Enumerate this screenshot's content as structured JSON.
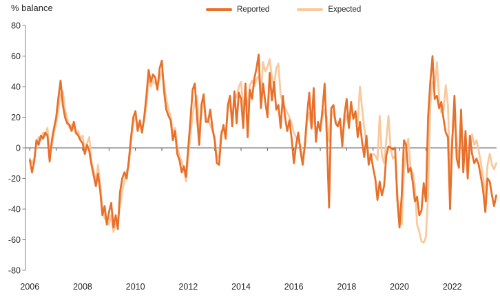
{
  "header": {
    "y_axis_title": "% balance"
  },
  "legend": {
    "position": "top-center",
    "items": [
      {
        "label": "Reported",
        "color": "#E8702A"
      },
      {
        "label": "Expected",
        "color": "#F9C99D"
      }
    ]
  },
  "axis_colors": {
    "y_axis": "#808080",
    "zero_line": "#595959",
    "tick_text": "#262626"
  },
  "chart_data": {
    "type": "line",
    "title": "",
    "ylabel": "% balance",
    "xlabel": "",
    "frequency": "monthly",
    "x_start": "2006-01",
    "x_end": "2023-09",
    "ylim": [
      -80,
      80
    ],
    "grid": false,
    "legend_position": "top",
    "yticks": [
      80,
      60,
      40,
      20,
      0,
      -20,
      -40,
      -60,
      -80
    ],
    "ytick_labels": [
      "80",
      "60",
      "40",
      "20",
      "0",
      "-20",
      "-40",
      "-60",
      "-80"
    ],
    "xtick_labels": [
      "2006",
      "2008",
      "2010",
      "2012",
      "2014",
      "2016",
      "2018",
      "2020",
      "2022"
    ],
    "series": [
      {
        "name": "Reported",
        "color": "#E8702A",
        "values": [
          -8,
          -16,
          -9,
          5,
          2,
          8,
          6,
          10,
          8,
          -9,
          5,
          13,
          20,
          33,
          44,
          28,
          20,
          16,
          15,
          11,
          17,
          10,
          8,
          5,
          3,
          -4,
          2,
          -2,
          -11,
          -18,
          -25,
          -17,
          -28,
          -44,
          -38,
          -50,
          -42,
          -36,
          -52,
          -44,
          -53,
          -29,
          -20,
          -16,
          -20,
          -8,
          7,
          20,
          24,
          11,
          18,
          10,
          20,
          34,
          51,
          43,
          48,
          46,
          38,
          52,
          57,
          37,
          25,
          21,
          18,
          5,
          11,
          -4,
          -8,
          -16,
          -12,
          -19,
          0,
          18,
          38,
          42,
          20,
          2,
          28,
          35,
          17,
          17,
          25,
          13,
          5,
          -10,
          -11,
          8,
          15,
          6,
          28,
          34,
          14,
          37,
          16,
          36,
          32,
          13,
          42,
          7,
          38,
          32,
          45,
          52,
          61,
          26,
          42,
          30,
          20,
          49,
          31,
          43,
          25,
          28,
          13,
          34,
          20,
          11,
          18,
          6,
          -10,
          2,
          10,
          -2,
          -11,
          2,
          22,
          36,
          13,
          39,
          4,
          17,
          11,
          25,
          42,
          7,
          -39,
          26,
          28,
          16,
          14,
          19,
          1,
          22,
          32,
          13,
          30,
          19,
          24,
          7,
          17,
          4,
          -6,
          8,
          -11,
          -4,
          -13,
          -20,
          -34,
          -22,
          -31,
          -25,
          -5,
          1,
          0,
          -1,
          0,
          -34,
          -52,
          -31,
          5,
          2,
          -16,
          -13,
          -22,
          -35,
          -32,
          -44,
          -41,
          -23,
          -35,
          20,
          43,
          60,
          32,
          34,
          26,
          30,
          19,
          10,
          7,
          -40,
          5,
          34,
          -7,
          -13,
          25,
          -16,
          11,
          -20,
          8,
          -4,
          -10,
          -7,
          -11,
          -19,
          -28,
          -42,
          -20,
          -22,
          -31,
          -38,
          -31
        ]
      },
      {
        "name": "Expected",
        "color": "#F9C99D",
        "values": [
          -7,
          -10,
          -7,
          2,
          7,
          5,
          10,
          8,
          13,
          -2,
          1,
          10,
          16,
          25,
          35,
          37,
          25,
          19,
          13,
          15,
          13,
          9,
          11,
          6,
          8,
          -2,
          3,
          7,
          -9,
          -15,
          -22,
          -11,
          -24,
          -40,
          -46,
          -48,
          -50,
          -44,
          -55,
          -50,
          -47,
          -38,
          -28,
          -22,
          -15,
          -12,
          4,
          16,
          20,
          15,
          14,
          12,
          18,
          28,
          45,
          40,
          44,
          42,
          40,
          45,
          50,
          42,
          32,
          25,
          21,
          9,
          13,
          1,
          -5,
          -9,
          -14,
          -22,
          -5,
          8,
          22,
          30,
          34,
          10,
          22,
          31,
          20,
          18,
          15,
          11,
          7,
          -7,
          -5,
          11,
          12,
          9,
          25,
          30,
          17,
          35,
          33,
          40,
          43,
          25,
          35,
          26,
          41,
          44,
          40,
          45,
          47,
          35,
          56,
          50,
          53,
          58,
          46,
          40,
          52,
          55,
          34,
          30,
          26,
          23,
          20,
          16,
          10,
          7,
          4,
          2,
          -8,
          0,
          17,
          23,
          12,
          22,
          11,
          15,
          13,
          20,
          25,
          20,
          4,
          25,
          21,
          18,
          15,
          17,
          8,
          16,
          22,
          14,
          25,
          20,
          20,
          16,
          40,
          26,
          13,
          4,
          -4,
          -6,
          -4,
          -5,
          -8,
          21,
          -5,
          -10,
          5,
          21,
          -1,
          -7,
          -5,
          -29,
          -46,
          -50,
          -16,
          0,
          6,
          -13,
          -16,
          -25,
          -50,
          -55,
          -61,
          -62,
          -58,
          -30,
          28,
          43,
          40,
          56,
          32,
          23,
          25,
          41,
          28,
          -17,
          7,
          20,
          4,
          -8,
          14,
          -8,
          5,
          -14,
          -2,
          9,
          2,
          5,
          -2,
          -10,
          -19,
          -33,
          -11,
          -4,
          -11,
          -14,
          -10
        ]
      }
    ]
  }
}
